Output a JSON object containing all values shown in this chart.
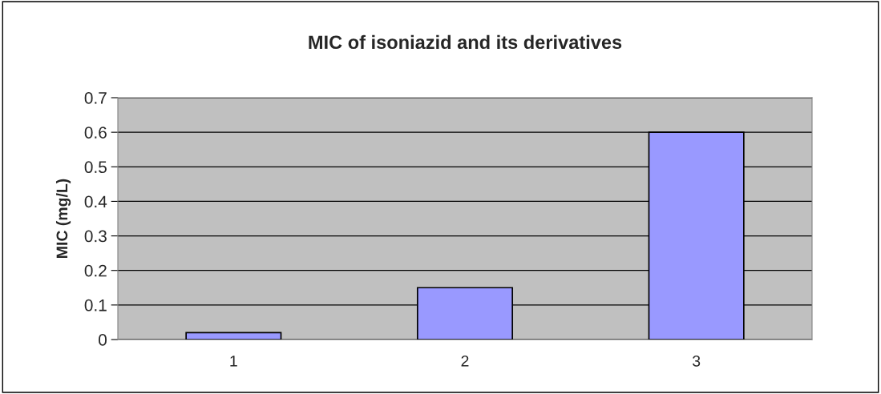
{
  "chart_data": {
    "type": "bar",
    "title": "MIC of isoniazid and its derivatives",
    "ylabel": "MIC (mg/L)",
    "categories": [
      "1",
      "2",
      "3"
    ],
    "values": [
      0.02,
      0.15,
      0.6
    ],
    "color": "#9999ff",
    "ylim": [
      0,
      0.7
    ],
    "yticks": [
      0,
      0.1,
      0.2,
      0.3,
      0.4,
      0.5,
      0.6,
      0.7
    ],
    "grid": "y",
    "legend": false
  }
}
